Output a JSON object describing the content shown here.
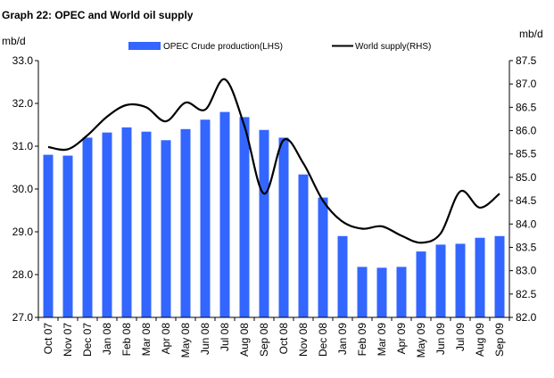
{
  "chart_data": {
    "type": "bar",
    "title": "Graph 22: OPEC and World oil supply",
    "left_axis_unit": "mb/d",
    "right_axis_unit": "mb/d",
    "categories": [
      "Oct 07",
      "Nov 07",
      "Dec 07",
      "Jan 08",
      "Feb 08",
      "Mar 08",
      "Apr 08",
      "May 08",
      "Jun 08",
      "Jul 08",
      "Aug 08",
      "Sep 08",
      "Oct 08",
      "Nov 08",
      "Dec 08",
      "Jan 09",
      "Feb 09",
      "Mar 09",
      "Apr 09",
      "May 09",
      "Jun 09",
      "Jul 09",
      "Aug 09",
      "Sep 09"
    ],
    "series": [
      {
        "name": "OPEC Crude production(LHS)",
        "type": "bar",
        "axis": "left",
        "color": "#3366ff",
        "values": [
          30.8,
          30.78,
          31.2,
          31.32,
          31.44,
          31.34,
          31.14,
          31.4,
          31.62,
          31.8,
          31.68,
          31.38,
          31.2,
          30.34,
          29.8,
          28.9,
          28.18,
          28.16,
          28.18,
          28.54,
          28.7,
          28.72,
          28.86,
          28.9
        ]
      },
      {
        "name": "World supply(RHS)",
        "type": "line",
        "axis": "right",
        "color": "#000000",
        "values": [
          85.65,
          85.6,
          85.9,
          86.3,
          86.55,
          86.5,
          86.2,
          86.6,
          86.45,
          87.1,
          86.1,
          84.65,
          85.8,
          85.3,
          84.5,
          84.05,
          83.9,
          83.95,
          83.75,
          83.6,
          83.8,
          84.7,
          84.35,
          84.65
        ]
      }
    ],
    "ylim_left": [
      27.0,
      33.0
    ],
    "yticks_left": [
      "27.0",
      "28.0",
      "29.0",
      "30.0",
      "31.0",
      "32.0",
      "33.0"
    ],
    "ylim_right": [
      82.0,
      87.5
    ],
    "yticks_right": [
      "82.0",
      "82.5",
      "83.0",
      "83.5",
      "84.0",
      "84.5",
      "85.0",
      "85.5",
      "86.0",
      "86.5",
      "87.0",
      "87.5"
    ],
    "grid": false,
    "legend_position": "top"
  }
}
